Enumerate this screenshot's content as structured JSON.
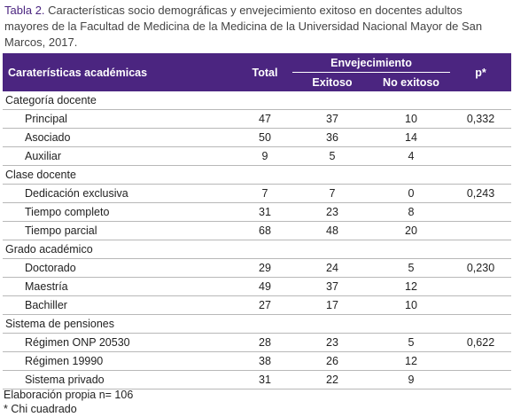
{
  "caption": {
    "label": "Tabla 2.",
    "text": "Características socio demográficas y envejecimiento exitoso en docentes adultos mayores de la Facultad de Medicina de la Medicina de la Universidad Nacional Mayor de San Marcos, 2017."
  },
  "table": {
    "header": {
      "characteristic": "Caraterísticas académicas",
      "total": "Total",
      "group": "Envejecimiento",
      "exitoso": "Exitoso",
      "no_exitoso": "No exitoso",
      "p": "p*"
    },
    "groups": [
      {
        "label": "Categoría docente",
        "rows": [
          {
            "label": "Principal",
            "total": 47,
            "exitoso": 37,
            "no_exitoso": 10,
            "p": "0,332"
          },
          {
            "label": "Asociado",
            "total": 50,
            "exitoso": 36,
            "no_exitoso": 14,
            "p": null
          },
          {
            "label": "Auxiliar",
            "total": 9,
            "exitoso": 5,
            "no_exitoso": 4,
            "p": null
          }
        ]
      },
      {
        "label": "Clase docente",
        "rows": [
          {
            "label": "Dedicación exclusiva",
            "total": 7,
            "exitoso": 7,
            "no_exitoso": 0,
            "p": "0,243"
          },
          {
            "label": "Tiempo completo",
            "total": 31,
            "exitoso": 23,
            "no_exitoso": 8,
            "p": null
          },
          {
            "label": "Tiempo parcial",
            "total": 68,
            "exitoso": 48,
            "no_exitoso": 20,
            "p": null
          }
        ]
      },
      {
        "label": "Grado académico",
        "rows": [
          {
            "label": "Doctorado",
            "total": 29,
            "exitoso": 24,
            "no_exitoso": 5,
            "p": "0,230"
          },
          {
            "label": "Maestría",
            "total": 49,
            "exitoso": 37,
            "no_exitoso": 12,
            "p": null
          },
          {
            "label": "Bachiller",
            "total": 27,
            "exitoso": 17,
            "no_exitoso": 10,
            "p": null
          }
        ]
      },
      {
        "label": "Sistema de pensiones",
        "rows": [
          {
            "label": "Régimen ONP 20530",
            "total": 28,
            "exitoso": 23,
            "no_exitoso": 5,
            "p": "0,622"
          },
          {
            "label": "Régimen 19990",
            "total": 38,
            "exitoso": 26,
            "no_exitoso": 12,
            "p": null
          },
          {
            "label": "Sistema privado",
            "total": 31,
            "exitoso": 22,
            "no_exitoso": 9,
            "p": null
          }
        ]
      }
    ]
  },
  "footnotes": [
    "Elaboración propia n= 106",
    "* Chi cuadrado"
  ]
}
